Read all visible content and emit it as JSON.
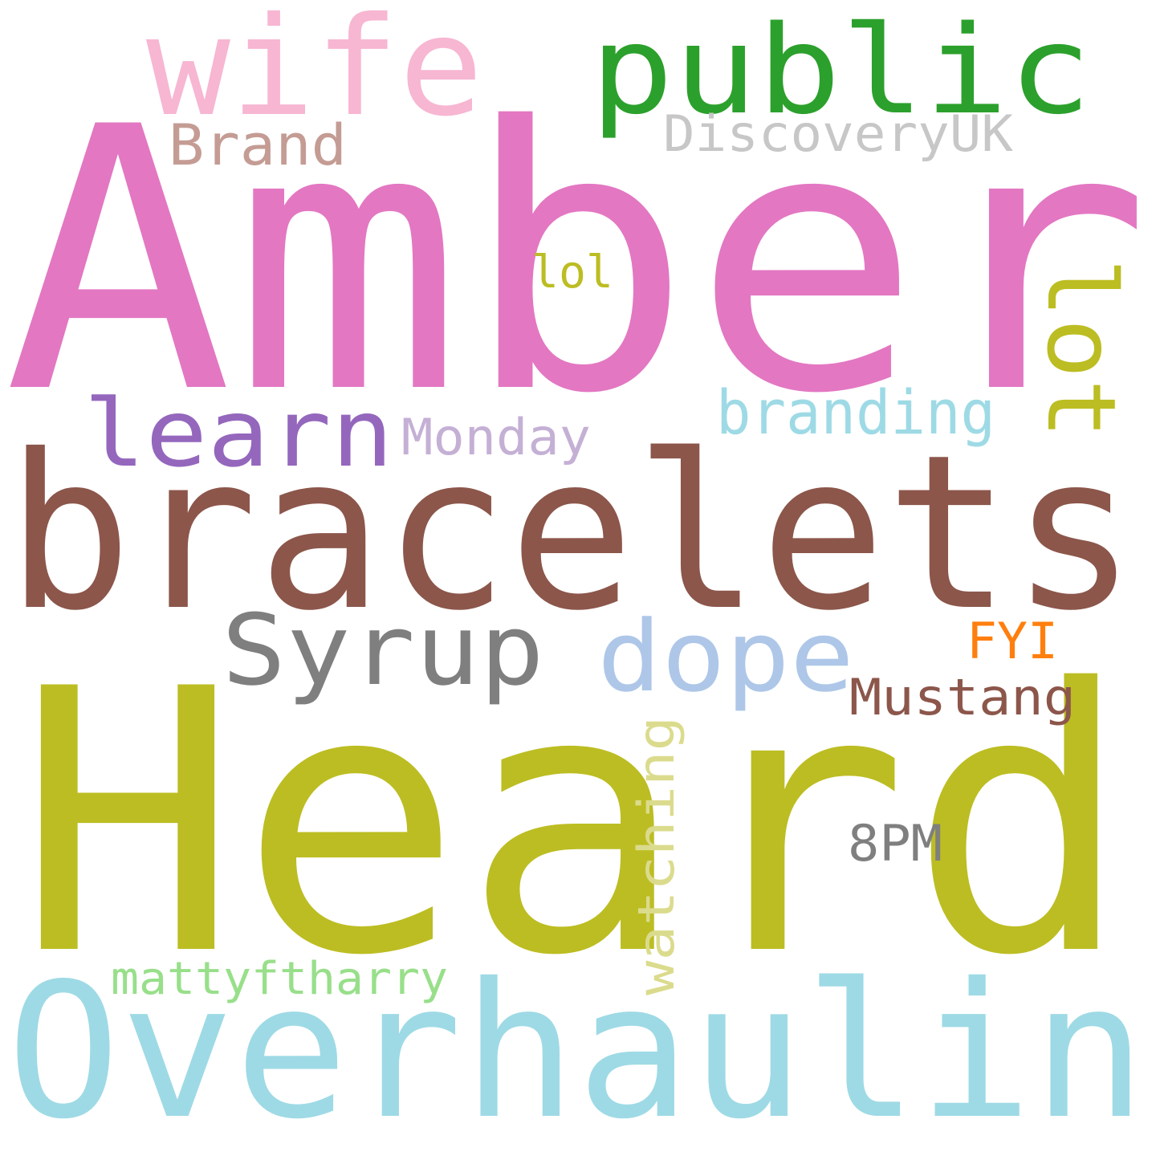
{
  "word_cloud": {
    "words": [
      {
        "text": "Amber",
        "color": "#e377c2"
      },
      {
        "text": "Heard",
        "color": "#bcbd22"
      },
      {
        "text": "bracelets",
        "color": "#8c564b"
      },
      {
        "text": "Overhaulin",
        "color": "#9edae5"
      },
      {
        "text": "public",
        "color": "#2ca02c"
      },
      {
        "text": "wife",
        "color": "#f7b6d2"
      },
      {
        "text": "Syrup",
        "color": "#7f7f7f"
      },
      {
        "text": "dope",
        "color": "#aec7e8"
      },
      {
        "text": "learn",
        "color": "#9467bd"
      },
      {
        "text": "lot",
        "color": "#bcbd22"
      },
      {
        "text": "branding",
        "color": "#9edae5"
      },
      {
        "text": "Monday",
        "color": "#c5b0d5"
      },
      {
        "text": "DiscoveryUK",
        "color": "#c7c7c7"
      },
      {
        "text": "Brand",
        "color": "#c49c94"
      },
      {
        "text": "lol",
        "color": "#bcbd22"
      },
      {
        "text": "Mustang",
        "color": "#8c564b"
      },
      {
        "text": "FYI",
        "color": "#ff7f0e"
      },
      {
        "text": "watching",
        "color": "#dbdb8d"
      },
      {
        "text": "8PM",
        "color": "#7f7f7f"
      },
      {
        "text": "mattyftharry",
        "color": "#98df8a"
      }
    ]
  }
}
